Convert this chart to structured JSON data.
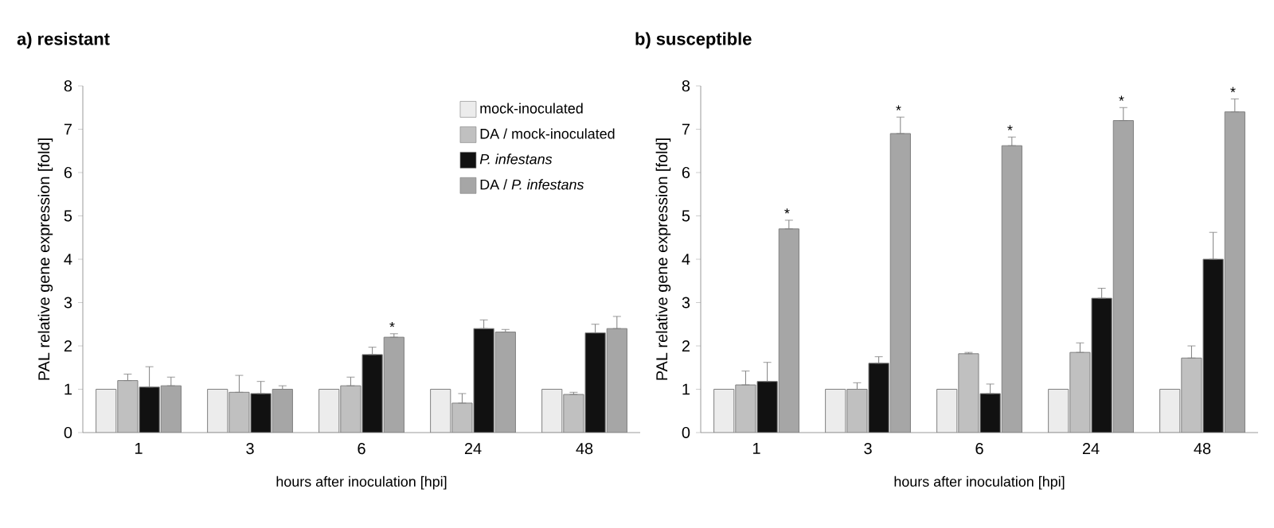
{
  "chart_data": [
    {
      "type": "bar",
      "title": "a) resistant",
      "xlabel": "hours after inoculation [hpi]",
      "ylabel": "PAL relative gene expression [fold]",
      "categories": [
        "1",
        "3",
        "6",
        "24",
        "48"
      ],
      "ylim": [
        0,
        8
      ],
      "yticks": [
        0,
        1,
        2,
        3,
        4,
        5,
        6,
        7,
        8
      ],
      "legend": "top right",
      "series": [
        {
          "name": "mock-inoculated",
          "color": "#ececec",
          "values": [
            1,
            1,
            1,
            1,
            1
          ]
        },
        {
          "name": "DA / mock-inoculated",
          "color": "#c0c0c0",
          "values": [
            1.2,
            0.93,
            1.08,
            0.68,
            0.88
          ],
          "errors": [
            [
              1.2,
              1.35
            ],
            [
              0.93,
              1.32
            ],
            [
              1.08,
              1.28
            ],
            [
              0.68,
              0.9
            ],
            [
              0.88,
              0.93
            ]
          ]
        },
        {
          "name": "*P. infestans*",
          "color": "#111111",
          "values": [
            1.05,
            0.9,
            1.8,
            2.4,
            2.3
          ],
          "errors": [
            [
              1.05,
              1.52
            ],
            [
              0.9,
              1.18
            ],
            [
              1.8,
              1.97
            ],
            [
              2.4,
              2.6
            ],
            [
              2.3,
              2.5
            ]
          ]
        },
        {
          "name": "DA / *P. infestans*",
          "color": "#a6a6a6",
          "values": [
            1.08,
            1.0,
            2.2,
            2.32,
            2.4
          ],
          "errors": [
            [
              1.08,
              1.28
            ],
            [
              1.0,
              1.08
            ],
            [
              2.2,
              2.28
            ],
            [
              2.32,
              2.38
            ],
            [
              2.4,
              2.68
            ]
          ],
          "value_labels": [
            null,
            null,
            "*",
            null,
            null
          ]
        }
      ]
    },
    {
      "type": "bar",
      "title": "b) susceptible",
      "xlabel": "hours after inoculation [hpi]",
      "ylabel": "PAL relative gene expression [fold]",
      "categories": [
        "1",
        "3",
        "6",
        "24",
        "48"
      ],
      "ylim": [
        0,
        8
      ],
      "yticks": [
        0,
        1,
        2,
        3,
        4,
        5,
        6,
        7,
        8
      ],
      "series": [
        {
          "color": "#ececec",
          "values": [
            1,
            1,
            1,
            1,
            1
          ]
        },
        {
          "color": "#c0c0c0",
          "values": [
            1.1,
            1.0,
            1.82,
            1.85,
            1.72
          ],
          "errors": [
            [
              1.1,
              1.42
            ],
            [
              1.0,
              1.15
            ],
            [
              1.82,
              1.85
            ],
            [
              1.85,
              2.07
            ],
            [
              1.72,
              2.0
            ]
          ]
        },
        {
          "color": "#111111",
          "values": [
            1.18,
            1.6,
            0.9,
            3.1,
            4.0
          ],
          "errors": [
            [
              1.18,
              1.62
            ],
            [
              1.6,
              1.75
            ],
            [
              0.9,
              1.12
            ],
            [
              3.1,
              3.33
            ],
            [
              4.0,
              4.62
            ]
          ]
        },
        {
          "color": "#a6a6a6",
          "values": [
            4.7,
            6.9,
            6.62,
            7.2,
            7.4
          ],
          "errors": [
            [
              4.7,
              4.9
            ],
            [
              6.9,
              7.28
            ],
            [
              6.62,
              6.82
            ],
            [
              7.2,
              7.5
            ],
            [
              7.4,
              7.7
            ]
          ],
          "value_labels": [
            "*",
            "*",
            "*",
            "*",
            "*"
          ]
        }
      ]
    }
  ]
}
